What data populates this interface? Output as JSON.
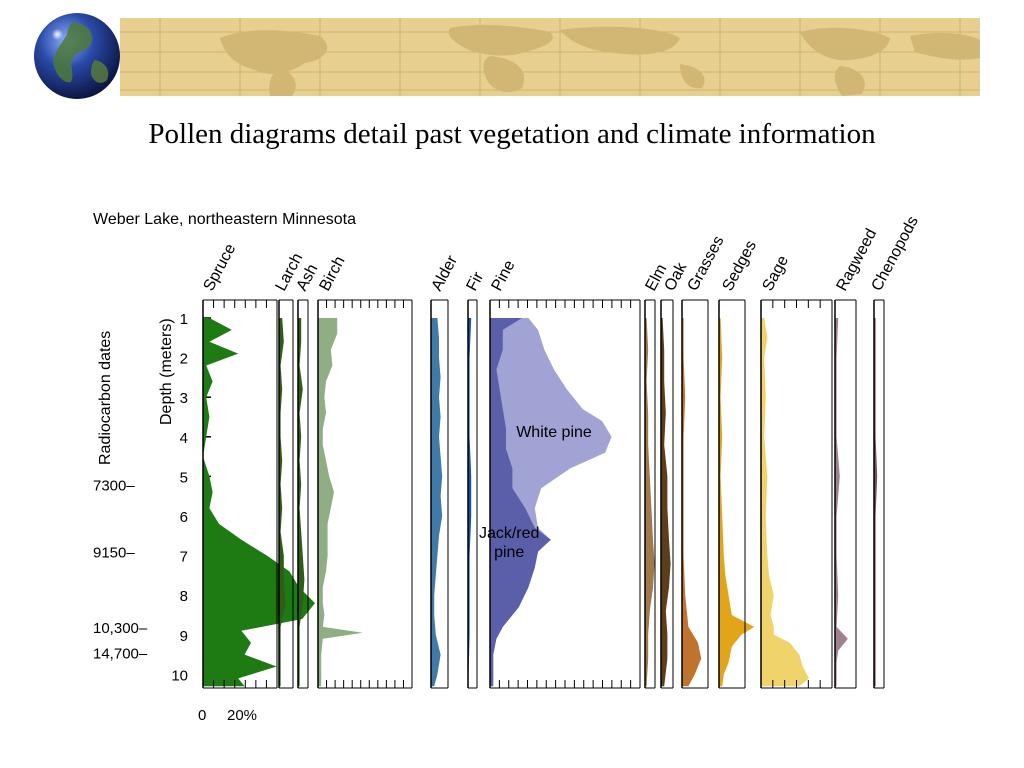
{
  "slide": {
    "title": "Pollen diagrams detail past vegetation and climate information"
  },
  "decor": {
    "banner_icon": "world-map-banner",
    "globe_icon": "globe-icon",
    "colors": {
      "banner": "#e6cf8f",
      "banner_land": "#d2b673",
      "globe_ocean": "#1f3c8c",
      "globe_land": "#3a6b3a"
    }
  },
  "chart_data": {
    "type": "area",
    "title": "Weber Lake, northeastern Minnesota",
    "depth_label": "Depth (meters)",
    "dates_label": "Radiocarbon dates",
    "depth_ticks": [
      1,
      2,
      3,
      4,
      5,
      6,
      7,
      8,
      9,
      10
    ],
    "ylim": [
      1,
      10.3
    ],
    "scale_labels": [
      "0",
      "20%"
    ],
    "radiocarbon_dates": [
      {
        "label": "7300–",
        "depth": 5.2
      },
      {
        "label": "9150–",
        "depth": 6.9
      },
      {
        "label": "10,300–",
        "depth": 8.8
      },
      {
        "label": "14,700–",
        "depth": 9.45
      }
    ],
    "taxa": [
      {
        "name": "Spruce",
        "color": "#1e7a12",
        "ticks": 6,
        "depth": [
          1,
          1.3,
          1.6,
          1.9,
          2.2,
          2.6,
          3,
          3.5,
          4,
          4.5,
          5,
          5.4,
          5.8,
          6.2,
          6.6,
          7,
          7.4,
          7.8,
          8.2,
          8.6,
          8.9,
          9.2,
          9.5,
          9.8,
          10.1,
          10.3
        ],
        "values": [
          2,
          9,
          2,
          11,
          1,
          3,
          1,
          2,
          1,
          0,
          2,
          3,
          2,
          5,
          12,
          20,
          27,
          30,
          35,
          31,
          12,
          15,
          13,
          23,
          11,
          13
        ]
      },
      {
        "name": "Larch",
        "color": "#2f5c17",
        "ticks": 0,
        "depth": [
          1,
          1.6,
          2.2,
          2.8,
          3.4,
          4,
          4.6,
          5.2,
          5.8,
          6.4,
          7,
          7.6,
          8.2,
          8.8,
          9.4,
          10,
          10.3
        ],
        "values": [
          1,
          1.5,
          0.5,
          1,
          0.5,
          0.5,
          1,
          0.5,
          1,
          0.5,
          1.5,
          1.5,
          2,
          0.5,
          0.5,
          0.5,
          0.5
        ]
      },
      {
        "name": "Ash",
        "color": "#2f5c17",
        "ticks": 0,
        "depth": [
          1,
          1.6,
          2.2,
          2.8,
          3.4,
          4,
          4.6,
          5.2,
          5.8,
          6.4,
          7,
          7.6,
          8.2,
          8.8,
          9.4,
          10,
          10.3
        ],
        "values": [
          1,
          1,
          0.5,
          1.5,
          0.5,
          1,
          0.5,
          1,
          0.5,
          1,
          1.5,
          2,
          1.5,
          0.5,
          0.5,
          0.5,
          0.5
        ]
      },
      {
        "name": "Birch",
        "color": "#8fae83",
        "ticks": 10,
        "depth": [
          1,
          1.4,
          1.8,
          2.2,
          2.6,
          3,
          3.4,
          3.8,
          4.2,
          4.6,
          5,
          5.4,
          5.8,
          6.2,
          6.6,
          7,
          7.4,
          7.8,
          8.2,
          8.5,
          8.8,
          8.95,
          9.1,
          9.5,
          9.9,
          10.3
        ],
        "values": [
          6,
          6,
          4,
          4.5,
          2.5,
          2,
          2.5,
          1.5,
          1.5,
          2.5,
          3.5,
          5,
          4,
          3,
          3,
          3,
          2.5,
          1.5,
          1.5,
          2,
          1.5,
          14,
          1.5,
          1,
          1,
          1
        ]
      },
      {
        "name": "Alder",
        "color": "#3f7aa9",
        "ticks": 0,
        "depth": [
          1,
          1.5,
          2,
          2.5,
          3,
          3.5,
          4,
          4.5,
          5,
          5.5,
          6,
          6.5,
          7,
          7.5,
          8,
          8.5,
          9,
          9.5,
          10,
          10.3
        ],
        "values": [
          2,
          2.5,
          2.5,
          3,
          2.5,
          3,
          2.5,
          3,
          3.5,
          3,
          3.5,
          2.5,
          2,
          1.5,
          1,
          1,
          1.5,
          3,
          2,
          1
        ]
      },
      {
        "name": "Fir",
        "color": "#1b4fa3",
        "ticks": 0,
        "depth": [
          1,
          2,
          3,
          4,
          5,
          6,
          7,
          8,
          9,
          10,
          10.3
        ],
        "values": [
          1,
          0.5,
          0.5,
          0.5,
          1,
          1,
          0.5,
          0.5,
          0.5,
          0.2,
          0.2
        ]
      },
      {
        "name": "Pine",
        "color": "#5b5ea8",
        "ticks": 15,
        "subseries": [
          {
            "name": "Jack/red pine",
            "color": "#5b5ea8",
            "depth": [
              1,
              1.3,
              1.8,
              2.3,
              2.8,
              3.3,
              3.8,
              4.3,
              4.8,
              5.3,
              5.8,
              6.3,
              6.6,
              6.9,
              7.3,
              7.8,
              8.3,
              8.8,
              9.1,
              9.5,
              10.3
            ],
            "values": [
              10,
              4,
              4,
              2,
              3,
              4,
              5,
              5,
              7,
              7,
              11,
              14,
              19,
              15,
              14,
              12,
              9,
              4,
              2,
              1,
              1
            ]
          },
          {
            "name": "White pine",
            "color": "#a1a3d4",
            "depth": [
              1,
              1.3,
              1.8,
              2.3,
              2.8,
              3.3,
              3.6,
              4,
              4.4,
              4.8,
              5.3,
              5.8,
              6.3,
              6.6,
              6.9,
              7.3,
              7.8,
              8.3,
              8.8,
              9.1,
              9.5,
              10.3
            ],
            "values": [
              12,
              15,
              17,
              20,
              24,
              29,
              35,
              38,
              36,
              25,
              16,
              14,
              15,
              19,
              15,
              14,
              12,
              9,
              4,
              2,
              1,
              1
            ]
          }
        ]
      },
      {
        "name": "Elm",
        "color": "#a0794c",
        "ticks": 0,
        "depth": [
          1,
          1.8,
          2.6,
          3.4,
          4.2,
          5,
          5.8,
          6.6,
          7.2,
          7.8,
          8.4,
          9,
          9.6,
          10.3
        ],
        "values": [
          0.5,
          1,
          0.5,
          1,
          1,
          1.5,
          2,
          2.5,
          3,
          2.5,
          1.5,
          1,
          1,
          0.5
        ]
      },
      {
        "name": "Oak",
        "color": "#5e3d1a",
        "ticks": 0,
        "depth": [
          1,
          1.8,
          2.6,
          3.4,
          4.2,
          5,
          5.8,
          6.6,
          7.2,
          7.8,
          8.4,
          9,
          9.6,
          10.3
        ],
        "values": [
          0.5,
          1,
          1,
          1.5,
          1,
          2,
          2,
          2.5,
          3,
          2.5,
          1.5,
          2,
          2,
          1
        ]
      },
      {
        "name": "Grasses",
        "color": "#c0732c",
        "ticks": 0,
        "depth": [
          1,
          2,
          3,
          4,
          5,
          6,
          7,
          8,
          8.8,
          9.2,
          9.6,
          10,
          10.3
        ],
        "values": [
          0.5,
          0.5,
          1,
          0.5,
          0.5,
          0.5,
          0.5,
          1,
          2,
          5,
          6,
          4,
          2
        ]
      },
      {
        "name": "Sedges",
        "color": "#e2a51a",
        "ticks": 0,
        "depth": [
          1,
          2,
          3,
          4,
          5,
          6,
          7,
          7.5,
          8,
          8.5,
          8.8,
          9,
          9.3,
          9.7,
          10,
          10.3
        ],
        "values": [
          0.5,
          1,
          0.5,
          1,
          0.5,
          1,
          1.5,
          2,
          3,
          4,
          11,
          7,
          4,
          3,
          1.5,
          1
        ]
      },
      {
        "name": "Sage",
        "color": "#f1d36b",
        "ticks": 5,
        "depth": [
          1,
          1.5,
          2,
          3,
          4,
          5,
          6,
          7,
          7.5,
          8,
          8.5,
          8.8,
          9,
          9.2,
          9.5,
          9.8,
          10.1,
          10.3
        ],
        "values": [
          1,
          2,
          1,
          1.5,
          1,
          2,
          1.5,
          2,
          2.5,
          4,
          3,
          4,
          4,
          9,
          12,
          13,
          15,
          12
        ]
      },
      {
        "name": "Ragweed",
        "color": "#a07f8f",
        "ticks": 0,
        "depth": [
          1,
          2,
          3,
          4,
          5,
          6,
          7,
          8,
          8.8,
          9.1,
          9.4,
          9.7,
          10.3
        ],
        "values": [
          1,
          0.5,
          0.5,
          0.5,
          1.5,
          0.5,
          0.5,
          1,
          0.5,
          4,
          1,
          0.5,
          0.5
        ]
      },
      {
        "name": "Chenopods",
        "color": "#7c4f5b",
        "ticks": 0,
        "depth": [
          1,
          2,
          3,
          4,
          5,
          6,
          7,
          8,
          9,
          10,
          10.3
        ],
        "values": [
          0.5,
          0.5,
          0.5,
          0.5,
          1,
          0.5,
          0.5,
          0.5,
          0.5,
          0.5,
          0.5
        ]
      }
    ],
    "annotations": [
      {
        "label": "White pine",
        "taxon": "Pine",
        "depth": 4.0,
        "value": 20
      },
      {
        "label": "Jack/red pine",
        "taxon": "Pine",
        "depth": 6.55,
        "value": 6
      }
    ]
  }
}
